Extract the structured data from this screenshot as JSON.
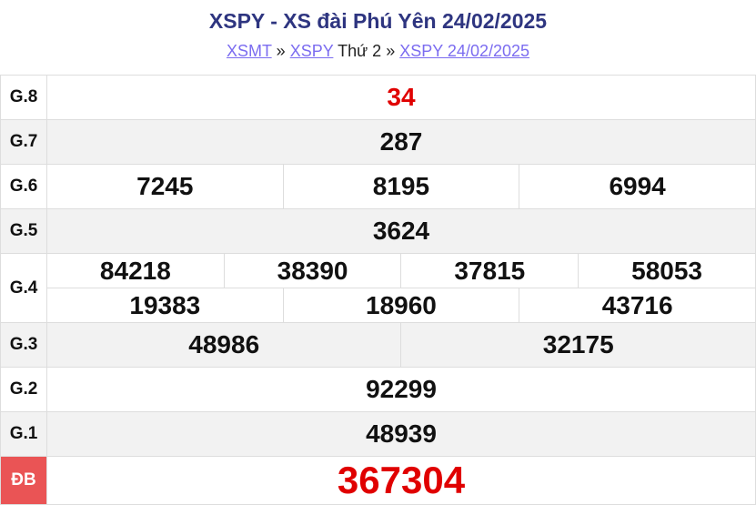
{
  "title": "XSPY - XS đài Phú Yên 24/02/2025",
  "breadcrumb": {
    "link1": "XSMT",
    "sep1": "»",
    "link2": "XSPY",
    "text": "Thứ 2",
    "sep2": "»",
    "link3": "XSPY 24/02/2025"
  },
  "prizes": {
    "g8": {
      "label": "G.8",
      "numbers": [
        "34"
      ]
    },
    "g7": {
      "label": "G.7",
      "numbers": [
        "287"
      ]
    },
    "g6": {
      "label": "G.6",
      "numbers": [
        "7245",
        "8195",
        "6994"
      ]
    },
    "g5": {
      "label": "G.5",
      "numbers": [
        "3624"
      ]
    },
    "g4": {
      "label": "G.4",
      "numbers": [
        "84218",
        "38390",
        "37815",
        "58053",
        "19383",
        "18960",
        "43716"
      ]
    },
    "g3": {
      "label": "G.3",
      "numbers": [
        "48986",
        "32175"
      ]
    },
    "g2": {
      "label": "G.2",
      "numbers": [
        "92299"
      ]
    },
    "g1": {
      "label": "G.1",
      "numbers": [
        "48939"
      ]
    },
    "db": {
      "label": "ĐB",
      "numbers": [
        "367304"
      ]
    }
  },
  "colors": {
    "title": "#2e3580",
    "link": "#7b6cf0",
    "highlight": "#e00000",
    "db_label_bg": "#ea5455"
  }
}
